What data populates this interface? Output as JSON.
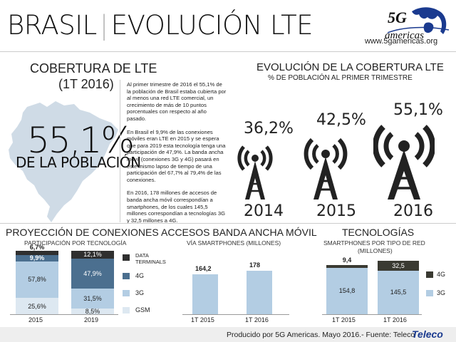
{
  "header": {
    "title_left": "BRASIL",
    "title_sep": "|",
    "title_right": "EVOLUCIÓN LTE",
    "logo_main": "5G",
    "logo_sub": "americas",
    "url": "www.5gamericas.org"
  },
  "coverage": {
    "heading": "COBERTURA DE LTE",
    "period": "(1T 2016)",
    "big_value": "55,1%",
    "big_label": "DE LA POBLACIÓN",
    "paragraphs": [
      "Al primer trimestre de 2016 el 55,1% de la población de Brasil estaba cubierta por al menos una red LTE comercial, un crecimiento de más de 10 puntos porcentuales con respecto al año pasado.",
      "En Brasil el 9,9% de las conexiones móviles eran LTE en 2015 y se espera que para 2019 esta tecnología tenga una participación de 47,9%. La banda ancha móvil (conexiones 3G y 4G) pasará en este mismo lapso de tiempo de una participación del 67,7% al 79,4% de las conexiones.",
      "En 2016, 178 millones de accesos de banda ancha móvil correspondían a smartphones, de los cuales 145,5 millones correspondían a tecnologías 3G y 32,5 millones a 4G."
    ]
  },
  "evolution": {
    "heading": "EVOLUCIÓN DE LA COBERTURA LTE",
    "subheading": "% DE POBLACIÓN AL PRIMER TRIMESTRE",
    "items": [
      {
        "value": "36,2%",
        "year": "2014"
      },
      {
        "value": "42,5%",
        "year": "2015"
      },
      {
        "value": "55,1%",
        "year": "2016"
      }
    ]
  },
  "projection": {
    "heading": "PROYECCIÓN DE CONEXIONES",
    "subheading": "PARTICIPACIÓN POR TECNOLOGÍA",
    "legend": [
      "DATA TERMINALS",
      "4G",
      "3G",
      "GSM"
    ],
    "colors": {
      "data_terminals": "#2f2f2f",
      "lte": "#4b6f8f",
      "threeg": "#b3cde3",
      "gsm": "#dde8f1"
    }
  },
  "broadband": {
    "heading": "ACCESOS BANDA ANCHA MÓVIL",
    "subheading": "VÍA SMARTPHONES (MILLONES)",
    "color": "#b3cde3"
  },
  "technologies": {
    "heading": "TECNOLOGÍAS",
    "subheading_1": "SMARTPHONES POR TIPO DE RED",
    "subheading_2": "(MILLONES)",
    "legend": [
      "4G",
      "3G"
    ],
    "colors": {
      "lte": "#3a3a32",
      "threeg": "#b3cde3"
    }
  },
  "chart_data": [
    {
      "type": "bar",
      "stacked": true,
      "categories": [
        "2015",
        "2019"
      ],
      "series": [
        {
          "name": "GSM",
          "values": [
            25.6,
            8.5
          ],
          "labels": [
            "25,6%",
            "8,5%"
          ]
        },
        {
          "name": "3G",
          "values": [
            57.8,
            31.5
          ],
          "labels": [
            "57,8%",
            "31,5%"
          ]
        },
        {
          "name": "4G",
          "values": [
            9.9,
            47.9
          ],
          "labels": [
            "9,9%",
            "47,9%"
          ]
        },
        {
          "name": "DATA TERMINALS",
          "values": [
            6.7,
            12.1
          ],
          "labels": [
            "6,7%",
            "12,1%"
          ]
        }
      ],
      "ylim": [
        0,
        100
      ]
    },
    {
      "type": "bar",
      "categories": [
        "1T 2015",
        "1T 2016"
      ],
      "values": [
        164.2,
        178
      ],
      "labels": [
        "164,2",
        "178"
      ]
    },
    {
      "type": "bar",
      "stacked": true,
      "categories": [
        "1T 2015",
        "1T 2016"
      ],
      "series": [
        {
          "name": "3G",
          "values": [
            154.8,
            145.5
          ],
          "labels": [
            "154,8",
            "145,5"
          ]
        },
        {
          "name": "4G",
          "values": [
            9.4,
            32.5
          ],
          "labels": [
            "9,4",
            "32,5"
          ]
        }
      ]
    }
  ],
  "footer": {
    "text": "Producido por 5G Americas. Mayo 2016.- Fuente: Teleco",
    "brand": "Teleco"
  }
}
